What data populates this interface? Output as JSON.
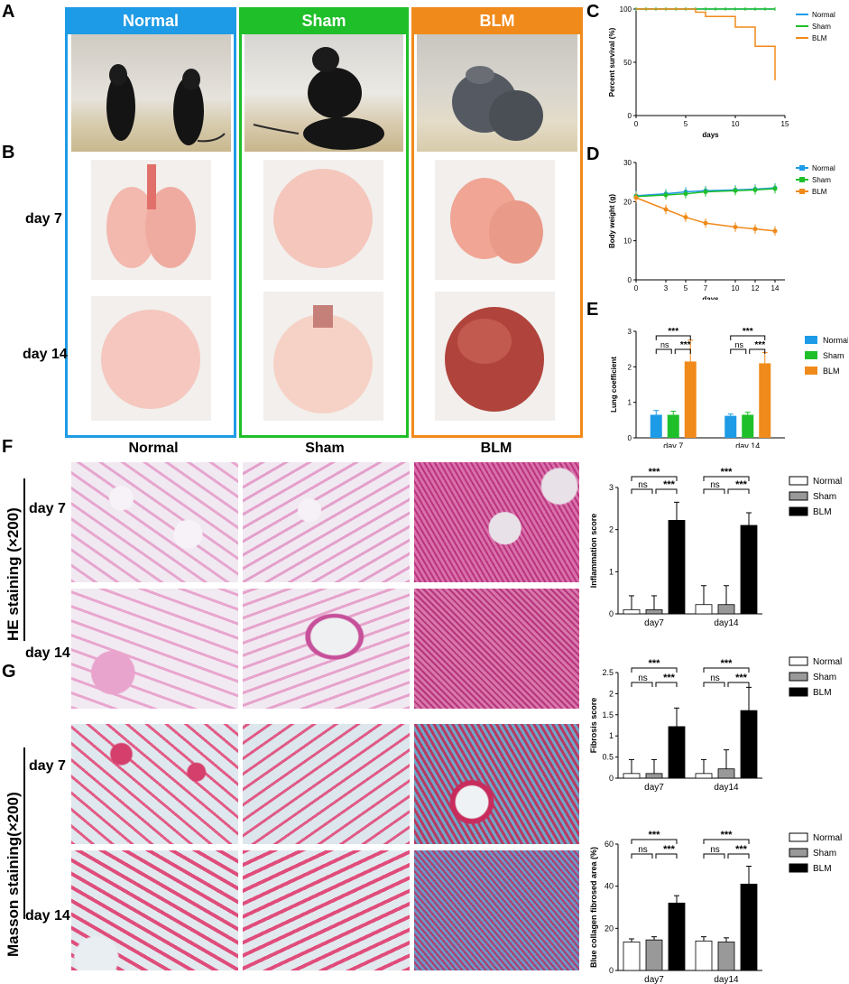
{
  "panels": {
    "A": "A",
    "B": "B",
    "C": "C",
    "D": "D",
    "E": "E",
    "F": "F",
    "G": "G"
  },
  "groups": [
    {
      "name": "Normal",
      "color": "#1e9be6"
    },
    {
      "name": "Sham",
      "color": "#1fbf2a"
    },
    {
      "name": "BLM",
      "color": "#f08a1a"
    }
  ],
  "days": {
    "d7": "day 7",
    "d14": "day 14"
  },
  "histo_cols": {
    "normal": "Normal",
    "sham": "Sham",
    "blm": "BLM"
  },
  "he_label": "HE staining (×200)",
  "masson_label": "Masson staining(×200)",
  "chart_data": [
    {
      "type": "line",
      "panel": "C",
      "ylabel": "Percent survival (%)",
      "xlabel": "days",
      "xlim": [
        0,
        15
      ],
      "ylim": [
        0,
        100
      ],
      "xticks": [
        0,
        5,
        10,
        15
      ],
      "yticks": [
        0,
        50,
        100
      ],
      "series": [
        {
          "name": "Normal",
          "color": "#1e9be6",
          "x": [
            0,
            14
          ],
          "y": [
            100,
            100
          ]
        },
        {
          "name": "Sham",
          "color": "#1fbf2a",
          "x": [
            0,
            14
          ],
          "y": [
            100,
            100
          ]
        },
        {
          "name": "BLM",
          "color": "#f08a1a",
          "x": [
            0,
            6,
            6,
            7,
            7,
            10,
            10,
            12,
            12,
            14,
            14
          ],
          "y": [
            100,
            100,
            97,
            97,
            93,
            93,
            83,
            83,
            65,
            65,
            33
          ]
        }
      ]
    },
    {
      "type": "line",
      "panel": "D",
      "ylabel": "Body weight (g)",
      "xlabel": "days",
      "xlim": [
        0,
        15
      ],
      "ylim": [
        0,
        30
      ],
      "xticks": [
        0,
        3,
        5,
        7,
        10,
        12,
        14
      ],
      "yticks": [
        0,
        10,
        20,
        30
      ],
      "series": [
        {
          "name": "Normal",
          "color": "#1e9be6",
          "x": [
            0,
            3,
            5,
            7,
            10,
            12,
            14
          ],
          "y": [
            21.5,
            22,
            22.5,
            22.8,
            23,
            23.2,
            23.5
          ]
        },
        {
          "name": "Sham",
          "color": "#1fbf2a",
          "x": [
            0,
            3,
            5,
            7,
            10,
            12,
            14
          ],
          "y": [
            21.3,
            21.7,
            22,
            22.5,
            22.8,
            23,
            23.3
          ]
        },
        {
          "name": "BLM",
          "color": "#f08a1a",
          "x": [
            0,
            3,
            5,
            7,
            10,
            12,
            14
          ],
          "y": [
            21,
            18,
            16,
            14.5,
            13.5,
            13,
            12.5
          ]
        }
      ]
    },
    {
      "type": "bar",
      "panel": "E",
      "ylabel": "Lung coefficient",
      "categories": [
        "day 7",
        "day 14"
      ],
      "ylim": [
        0,
        3
      ],
      "yticks": [
        0,
        1,
        2,
        3
      ],
      "series": [
        {
          "name": "Normal",
          "color": "#1e9be6",
          "values": [
            0.65,
            0.62
          ],
          "err": [
            0.12,
            0.05
          ]
        },
        {
          "name": "Sham",
          "color": "#1fbf2a",
          "values": [
            0.65,
            0.65
          ],
          "err": [
            0.1,
            0.07
          ]
        },
        {
          "name": "BLM",
          "color": "#f08a1a",
          "values": [
            2.15,
            2.1
          ],
          "err": [
            0.6,
            0.3
          ]
        }
      ],
      "sig": [
        "***",
        "ns",
        "***"
      ]
    },
    {
      "type": "bar",
      "panel": "F",
      "ylabel": "Inflammation score",
      "categories": [
        "day7",
        "day14"
      ],
      "ylim": [
        0,
        3
      ],
      "yticks": [
        0,
        1,
        2,
        3
      ],
      "series": [
        {
          "name": "Normal",
          "color": "#ffffff",
          "values": [
            0.1,
            0.22
          ],
          "err": [
            0.33,
            0.45
          ]
        },
        {
          "name": "Sham",
          "color": "#999999",
          "values": [
            0.1,
            0.22
          ],
          "err": [
            0.33,
            0.45
          ]
        },
        {
          "name": "BLM",
          "color": "#000000",
          "values": [
            2.22,
            2.1
          ],
          "err": [
            0.43,
            0.3
          ]
        }
      ],
      "sig": [
        "***",
        "ns",
        "***"
      ]
    },
    {
      "type": "bar",
      "panel": "G1",
      "ylabel": "Fibrosis score",
      "categories": [
        "day7",
        "day14"
      ],
      "ylim": [
        0,
        2.5
      ],
      "yticks": [
        0.0,
        0.5,
        1.0,
        1.5,
        2.0,
        2.5
      ],
      "series": [
        {
          "name": "Normal",
          "color": "#ffffff",
          "values": [
            0.11,
            0.11
          ],
          "err": [
            0.33,
            0.33
          ]
        },
        {
          "name": "Sham",
          "color": "#999999",
          "values": [
            0.11,
            0.22
          ],
          "err": [
            0.33,
            0.45
          ]
        },
        {
          "name": "BLM",
          "color": "#000000",
          "values": [
            1.22,
            1.6
          ],
          "err": [
            0.44,
            0.55
          ]
        }
      ],
      "sig": [
        "***",
        "ns",
        "***"
      ]
    },
    {
      "type": "bar",
      "panel": "G2",
      "ylabel": "Blue collagen fibrosed area (%)",
      "categories": [
        "day7",
        "day14"
      ],
      "ylim": [
        0,
        60
      ],
      "yticks": [
        0,
        20,
        40,
        60
      ],
      "series": [
        {
          "name": "Normal",
          "color": "#ffffff",
          "values": [
            13.5,
            14
          ],
          "err": [
            1.5,
            2
          ]
        },
        {
          "name": "Sham",
          "color": "#999999",
          "values": [
            14.5,
            13.5
          ],
          "err": [
            1.5,
            2
          ]
        },
        {
          "name": "BLM",
          "color": "#000000",
          "values": [
            32,
            41
          ],
          "err": [
            3.5,
            8.5
          ]
        }
      ],
      "sig": [
        "***",
        "ns",
        "***"
      ]
    }
  ]
}
